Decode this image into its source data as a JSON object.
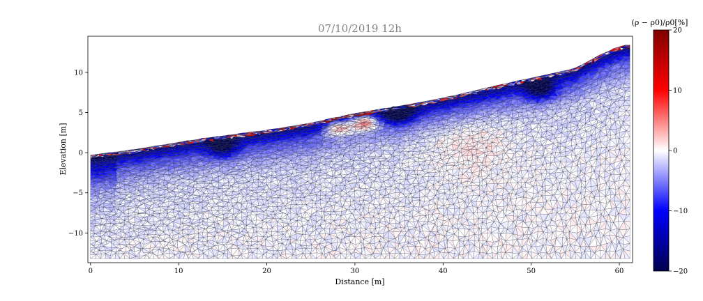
{
  "chart_data": {
    "type": "heatmap",
    "title": "07/10/2019 12h",
    "xlabel": "Distance [m]",
    "ylabel": "Elevation [m]",
    "xlim": [
      -0.3,
      61.5
    ],
    "ylim": [
      -13.7,
      14.5
    ],
    "xticks": [
      0,
      10,
      20,
      30,
      40,
      50,
      60
    ],
    "yticks": [
      -10,
      -5,
      0,
      5,
      10
    ],
    "grid": false,
    "surface_profile": [
      {
        "x": 0.0,
        "y": -0.3
      },
      {
        "x": 5.0,
        "y": 0.4
      },
      {
        "x": 10.0,
        "y": 1.3
      },
      {
        "x": 15.0,
        "y": 2.1
      },
      {
        "x": 20.0,
        "y": 2.8
      },
      {
        "x": 25.0,
        "y": 3.7
      },
      {
        "x": 30.0,
        "y": 4.9
      },
      {
        "x": 35.0,
        "y": 5.8
      },
      {
        "x": 40.0,
        "y": 6.8
      },
      {
        "x": 45.0,
        "y": 8.1
      },
      {
        "x": 50.0,
        "y": 9.3
      },
      {
        "x": 55.0,
        "y": 10.5
      },
      {
        "x": 58.0,
        "y": 12.3
      },
      {
        "x": 60.5,
        "y": 13.4
      }
    ],
    "mesh_bottom": -13.2,
    "mesh_right": 61.2,
    "colorbar": {
      "label": "(ρ − ρ0)/ρ0[%]",
      "min": -20,
      "max": 20,
      "ticks": [
        20,
        10,
        0,
        -10,
        -20
      ],
      "tick_labels": [
        "20",
        "10",
        "0",
        "−10",
        "−20"
      ],
      "colormap": "seismic"
    },
    "anomalies": [
      {
        "type": "positive",
        "x": 28.0,
        "y": 3.2,
        "value": 12
      },
      {
        "type": "positive",
        "x": 31.0,
        "y": 3.9,
        "value": 14
      },
      {
        "type": "positive",
        "x": 43.0,
        "y": 1.5,
        "value": 2
      },
      {
        "type": "negative",
        "x": 35.0,
        "y": 5.0,
        "value": -18
      },
      {
        "type": "negative",
        "x": 51.0,
        "y": 8.0,
        "value": -16
      },
      {
        "type": "negative",
        "x": 15.0,
        "y": 0.8,
        "value": -14
      }
    ],
    "colors": {
      "mesh_line": "#2b2f4a",
      "frame": "#000000",
      "title": "#808080"
    }
  }
}
